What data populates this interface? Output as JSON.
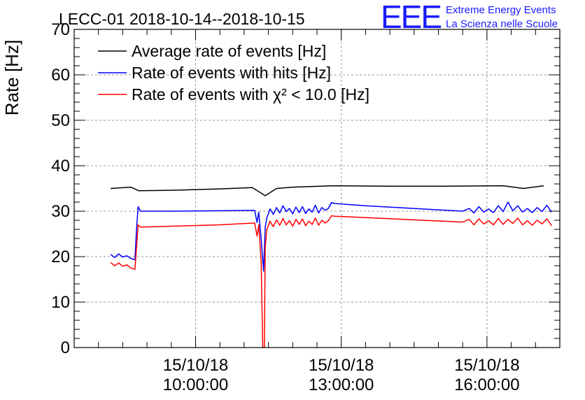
{
  "chart_data": {
    "type": "line",
    "title": "LECC-01 2018-10-14--2018-10-15",
    "ylabel": "Rate [Hz]",
    "xlabel": "",
    "ylim": [
      0,
      70
    ],
    "yticks": [
      0,
      10,
      20,
      30,
      40,
      50,
      60,
      70
    ],
    "xlim": [
      "15/10/18 07:30:00",
      "15/10/18 17:30:00"
    ],
    "xticks": [
      {
        "x": "15/10/18 10:00:00",
        "date": "15/10/18",
        "time": "10:00:00"
      },
      {
        "x": "15/10/18 13:00:00",
        "date": "15/10/18",
        "time": "13:00:00"
      },
      {
        "x": "15/10/18 16:00:00",
        "date": "15/10/18",
        "time": "16:00:00"
      }
    ],
    "grid": true,
    "legend_position": "top-left",
    "series": [
      {
        "name": "Average rate of events [Hz]",
        "color": "#000000",
        "points": [
          [
            "15/10/18 08:15:00",
            35.0
          ],
          [
            "15/10/18 08:40:00",
            35.3
          ],
          [
            "15/10/18 08:50:00",
            34.5
          ],
          [
            "15/10/18 09:30:00",
            34.6
          ],
          [
            "15/10/18 10:30:00",
            34.9
          ],
          [
            "15/10/18 11:10:00",
            35.2
          ],
          [
            "15/10/18 11:20:00",
            34.1
          ],
          [
            "15/10/18 11:26:00",
            33.4
          ],
          [
            "15/10/18 11:40:00",
            35.0
          ],
          [
            "15/10/18 12:00:00",
            35.3
          ],
          [
            "15/10/18 12:50:00",
            35.6
          ],
          [
            "15/10/18 14:00:00",
            35.5
          ],
          [
            "15/10/18 15:00:00",
            35.5
          ],
          [
            "15/10/18 16:20:00",
            35.6
          ],
          [
            "15/10/18 16:45:00",
            35.0
          ],
          [
            "15/10/18 17:10:00",
            35.6
          ]
        ]
      },
      {
        "name": "Rate of events with hits [Hz]",
        "color": "#0000ff",
        "points": [
          [
            "15/10/18 08:15:00",
            20.5
          ],
          [
            "15/10/18 08:20:00",
            19.8
          ],
          [
            "15/10/18 08:25:00",
            20.6
          ],
          [
            "15/10/18 08:30:00",
            19.9
          ],
          [
            "15/10/18 08:35:00",
            20.2
          ],
          [
            "15/10/18 08:40:00",
            19.6
          ],
          [
            "15/10/18 08:45:00",
            19.3
          ],
          [
            "15/10/18 08:47:00",
            26.0
          ],
          [
            "15/10/18 08:49:00",
            31.0
          ],
          [
            "15/10/18 08:52:00",
            30.0
          ],
          [
            "15/10/18 09:30:00",
            30.0
          ],
          [
            "15/10/18 10:30:00",
            30.1
          ],
          [
            "15/10/18 11:13:00",
            30.2
          ],
          [
            "15/10/18 11:16:00",
            27.5
          ],
          [
            "15/10/18 11:18:00",
            29.8
          ],
          [
            "15/10/18 11:21:00",
            24.0
          ],
          [
            "15/10/18 11:24:00",
            16.8
          ],
          [
            "15/10/18 11:26:00",
            26.5
          ],
          [
            "15/10/18 11:28:00",
            28.5
          ],
          [
            "15/10/18 11:32:00",
            30.5
          ],
          [
            "15/10/18 11:36:00",
            29.3
          ],
          [
            "15/10/18 11:40:00",
            30.8
          ],
          [
            "15/10/18 11:44:00",
            29.6
          ],
          [
            "15/10/18 11:48:00",
            31.2
          ],
          [
            "15/10/18 11:52:00",
            29.9
          ],
          [
            "15/10/18 11:56:00",
            30.6
          ],
          [
            "15/10/18 12:00:00",
            29.4
          ],
          [
            "15/10/18 12:04:00",
            30.9
          ],
          [
            "15/10/18 12:08:00",
            29.7
          ],
          [
            "15/10/18 12:12:00",
            31.0
          ],
          [
            "15/10/18 12:16:00",
            29.5
          ],
          [
            "15/10/18 12:20:00",
            30.5
          ],
          [
            "15/10/18 12:24:00",
            29.8
          ],
          [
            "15/10/18 12:28:00",
            31.3
          ],
          [
            "15/10/18 12:32:00",
            29.6
          ],
          [
            "15/10/18 12:36:00",
            30.8
          ],
          [
            "15/10/18 12:40:00",
            30.2
          ],
          [
            "15/10/18 12:44:00",
            30.6
          ],
          [
            "15/10/18 12:48:00",
            31.9
          ],
          [
            "15/10/18 12:52:00",
            31.7
          ],
          [
            "15/10/18 13:30:00",
            31.2
          ],
          [
            "15/10/18 14:30:00",
            30.6
          ],
          [
            "15/10/18 15:30:00",
            30.0
          ],
          [
            "15/10/18 15:38:00",
            30.6
          ],
          [
            "15/10/18 15:44:00",
            29.6
          ],
          [
            "15/10/18 15:50:00",
            31.0
          ],
          [
            "15/10/18 15:56:00",
            29.8
          ],
          [
            "15/10/18 16:02:00",
            30.5
          ],
          [
            "15/10/18 16:08:00",
            29.7
          ],
          [
            "15/10/18 16:14:00",
            31.2
          ],
          [
            "15/10/18 16:20:00",
            29.9
          ],
          [
            "15/10/18 16:26:00",
            32.0
          ],
          [
            "15/10/18 16:32:00",
            30.1
          ],
          [
            "15/10/18 16:38:00",
            31.2
          ],
          [
            "15/10/18 16:44:00",
            29.8
          ],
          [
            "15/10/18 16:50:00",
            30.6
          ],
          [
            "15/10/18 16:56:00",
            29.7
          ],
          [
            "15/10/18 17:02:00",
            30.8
          ],
          [
            "15/10/18 17:08:00",
            29.9
          ],
          [
            "15/10/18 17:14:00",
            31.3
          ],
          [
            "15/10/18 17:20:00",
            29.8
          ]
        ]
      },
      {
        "name": "Rate of events with χ² < 10.0 [Hz]",
        "color": "#ff0000",
        "points": [
          [
            "15/10/18 08:15:00",
            18.7
          ],
          [
            "15/10/18 08:20:00",
            18.0
          ],
          [
            "15/10/18 08:25:00",
            18.6
          ],
          [
            "15/10/18 08:30:00",
            17.9
          ],
          [
            "15/10/18 08:35:00",
            18.2
          ],
          [
            "15/10/18 08:40:00",
            17.5
          ],
          [
            "15/10/18 08:45:00",
            17.2
          ],
          [
            "15/10/18 08:47:00",
            22.0
          ],
          [
            "15/10/18 08:49:00",
            27.0
          ],
          [
            "15/10/18 08:52:00",
            26.5
          ],
          [
            "15/10/18 09:30:00",
            26.7
          ],
          [
            "15/10/18 10:30:00",
            27.0
          ],
          [
            "15/10/18 11:13:00",
            27.4
          ],
          [
            "15/10/18 11:16:00",
            24.5
          ],
          [
            "15/10/18 11:18:00",
            27.0
          ],
          [
            "15/10/18 11:21:00",
            19.0
          ],
          [
            "15/10/18 11:23:00",
            0.0
          ],
          [
            "15/10/18 11:25:00",
            0.0
          ],
          [
            "15/10/18 11:26:00",
            22.0
          ],
          [
            "15/10/18 11:28:00",
            26.0
          ],
          [
            "15/10/18 11:32:00",
            27.8
          ],
          [
            "15/10/18 11:36:00",
            26.6
          ],
          [
            "15/10/18 11:40:00",
            28.1
          ],
          [
            "15/10/18 11:44:00",
            26.9
          ],
          [
            "15/10/18 11:48:00",
            28.4
          ],
          [
            "15/10/18 11:52:00",
            27.0
          ],
          [
            "15/10/18 11:56:00",
            27.9
          ],
          [
            "15/10/18 12:00:00",
            26.7
          ],
          [
            "15/10/18 12:04:00",
            28.2
          ],
          [
            "15/10/18 12:08:00",
            27.1
          ],
          [
            "15/10/18 12:12:00",
            28.3
          ],
          [
            "15/10/18 12:16:00",
            26.8
          ],
          [
            "15/10/18 12:20:00",
            27.8
          ],
          [
            "15/10/18 12:24:00",
            27.1
          ],
          [
            "15/10/18 12:28:00",
            28.5
          ],
          [
            "15/10/18 12:32:00",
            26.9
          ],
          [
            "15/10/18 12:36:00",
            28.0
          ],
          [
            "15/10/18 12:40:00",
            27.4
          ],
          [
            "15/10/18 12:44:00",
            27.9
          ],
          [
            "15/10/18 12:48:00",
            29.0
          ],
          [
            "15/10/18 12:52:00",
            28.9
          ],
          [
            "15/10/18 13:30:00",
            28.6
          ],
          [
            "15/10/18 14:30:00",
            28.1
          ],
          [
            "15/10/18 15:30:00",
            27.6
          ],
          [
            "15/10/18 15:38:00",
            28.2
          ],
          [
            "15/10/18 15:44:00",
            27.0
          ],
          [
            "15/10/18 15:50:00",
            28.3
          ],
          [
            "15/10/18 15:56:00",
            27.2
          ],
          [
            "15/10/18 16:02:00",
            27.9
          ],
          [
            "15/10/18 16:08:00",
            27.0
          ],
          [
            "15/10/18 16:14:00",
            28.4
          ],
          [
            "15/10/18 16:20:00",
            27.1
          ],
          [
            "15/10/18 16:26:00",
            28.2
          ],
          [
            "15/10/18 16:32:00",
            27.3
          ],
          [
            "15/10/18 16:38:00",
            28.5
          ],
          [
            "15/10/18 16:44:00",
            27.0
          ],
          [
            "15/10/18 16:50:00",
            27.9
          ],
          [
            "15/10/18 16:56:00",
            26.9
          ],
          [
            "15/10/18 17:02:00",
            28.0
          ],
          [
            "15/10/18 17:08:00",
            27.2
          ],
          [
            "15/10/18 17:14:00",
            28.3
          ],
          [
            "15/10/18 17:20:00",
            26.8
          ]
        ]
      }
    ]
  },
  "logo": {
    "mark": "EEE",
    "line1": "Extreme Energy Events",
    "line2": "La Scienza nelle Scuole",
    "color": "#1a1aff"
  }
}
